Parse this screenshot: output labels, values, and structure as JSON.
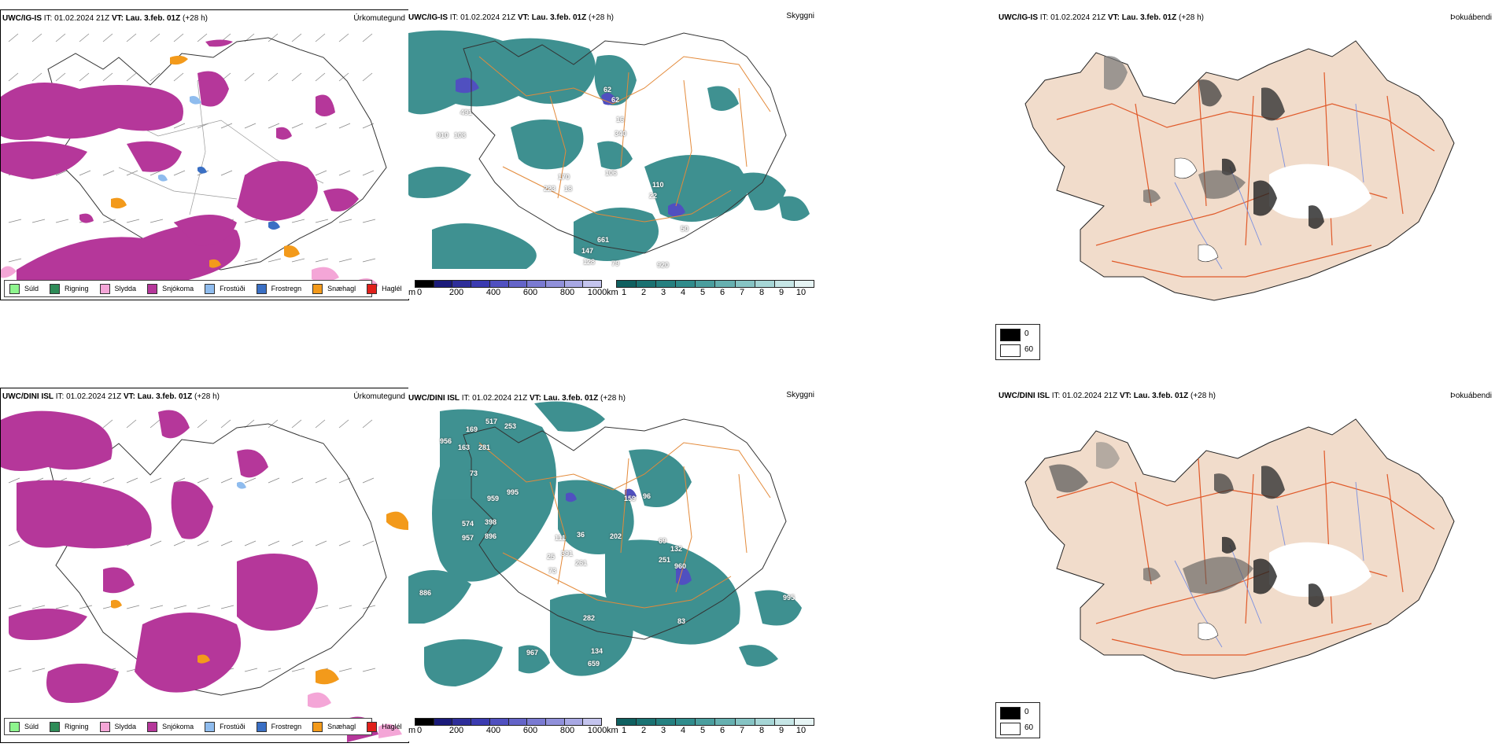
{
  "panels": {
    "precip": [
      {
        "model": "UWC/IG-IS",
        "it": "IT: 01.02.2024 21Z",
        "vt_label": "VT:",
        "vt": "Lau. 3.feb. 01Z",
        "lead": "(+28 h)",
        "corner": "Úrkomutegund"
      },
      {
        "model": "UWC/DINI ISL",
        "it": "IT: 01.02.2024 21Z",
        "vt_label": "VT:",
        "vt": "Lau. 3.feb. 01Z",
        "lead": "(+28 h)",
        "corner": "Úrkomutegund"
      }
    ],
    "visibility": [
      {
        "model": "UWC/IG-IS",
        "it": "IT: 01.02.2024 21Z",
        "vt_label": "VT:",
        "vt": "Lau. 3.feb. 01Z",
        "lead": "(+28 h)",
        "corner": "Skyggni",
        "labels": [
          "62",
          "62",
          "16",
          "340",
          "106",
          "170",
          "223",
          "18",
          "110",
          "22",
          "50",
          "661",
          "147",
          "128",
          "79",
          "920",
          "910",
          "108",
          "491"
        ]
      },
      {
        "model": "UWC/DINI ISL",
        "it": "IT: 01.02.2024 21Z",
        "vt_label": "VT:",
        "vt": "Lau. 3.feb. 01Z",
        "lead": "(+28 h)",
        "corner": "Skyggni",
        "labels": [
          "169",
          "517",
          "253",
          "956",
          "163",
          "281",
          "73",
          "959",
          "995",
          "574",
          "398",
          "957",
          "896",
          "111",
          "36",
          "202",
          "391",
          "25",
          "261",
          "73",
          "69",
          "132",
          "251",
          "960",
          "282",
          "83",
          "134",
          "659",
          "967",
          "886",
          "995",
          "96",
          "159"
        ]
      }
    ],
    "fog": [
      {
        "model": "UWC/IG-IS",
        "it": "IT: 01.02.2024 21Z",
        "vt_label": "VT:",
        "vt": "Lau. 3.feb. 01Z",
        "lead": "(+28 h)",
        "corner": "Þokuábendi"
      },
      {
        "model": "UWC/DINI ISL",
        "it": "IT: 01.02.2024 21Z",
        "vt_label": "VT:",
        "vt": "Lau. 3.feb. 01Z",
        "lead": "(+28 h)",
        "corner": "Þokuábendi"
      }
    ]
  },
  "precip_legend": [
    {
      "label": "Súld",
      "color": "#8ef58e"
    },
    {
      "label": "Rigning",
      "color": "#2e8b57"
    },
    {
      "label": "Slydda",
      "color": "#f4a6d7"
    },
    {
      "label": "Snjókoma",
      "color": "#b5379a"
    },
    {
      "label": "Frostúði",
      "color": "#8fbcee"
    },
    {
      "label": "Frostregn",
      "color": "#3a6fc4"
    },
    {
      "label": "Snæhagl",
      "color": "#f39a1b"
    },
    {
      "label": "Haglél",
      "color": "#e0201b"
    }
  ],
  "vis_colorbar_m": {
    "unit": "m",
    "ticks": [
      "0",
      "200",
      "400",
      "600",
      "800",
      "1000"
    ],
    "colors": [
      "#000000",
      "#1a1a7a",
      "#2e2e9a",
      "#3b3bb0",
      "#5050c0",
      "#6464c8",
      "#7a7ad2",
      "#9090da",
      "#a8a8e4",
      "#c4c4ee"
    ]
  },
  "vis_colorbar_km": {
    "unit": "km",
    "ticks": [
      "1",
      "2",
      "3",
      "4",
      "5",
      "6",
      "7",
      "8",
      "9",
      "10"
    ],
    "colors": [
      "#0f6060",
      "#1a7272",
      "#258080",
      "#308c8c",
      "#4a9e9e",
      "#66b0b0",
      "#86c4c4",
      "#a6d6d6",
      "#c6e6e6",
      "#e6f4f4"
    ]
  },
  "fog_legend": {
    "items": [
      {
        "value": "0",
        "color": "#000000"
      },
      {
        "value": "60",
        "color": "#ffffff"
      }
    ]
  }
}
